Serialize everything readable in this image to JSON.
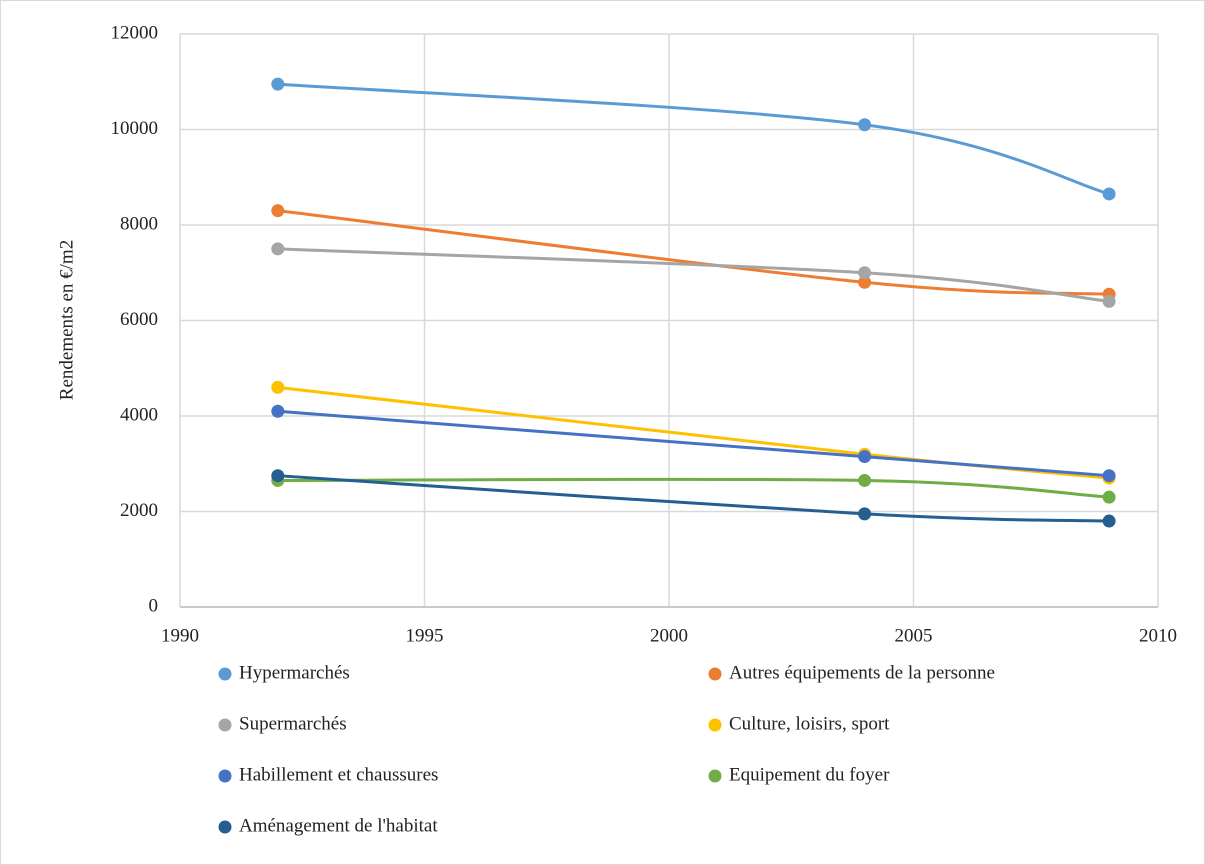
{
  "chart_data": {
    "type": "line",
    "smooth": true,
    "ylabel": "Rendements en €/m2",
    "x": [
      1992,
      2004,
      2009
    ],
    "xlim": [
      1990,
      2010
    ],
    "xticks": [
      1990,
      1995,
      2000,
      2005,
      2010
    ],
    "ylim": [
      0,
      12000
    ],
    "yticks": [
      0,
      2000,
      4000,
      6000,
      8000,
      10000,
      12000
    ],
    "grid": true,
    "legend": "bottom",
    "series": [
      {
        "name": "Hypermarchés",
        "color": "#5b9bd5",
        "values": [
          10950,
          10100,
          8650
        ]
      },
      {
        "name": "Autres équipements de la personne",
        "color": "#ed7d31",
        "values": [
          8300,
          6800,
          6550
        ]
      },
      {
        "name": "Supermarchés",
        "color": "#a5a5a5",
        "values": [
          7500,
          7000,
          6400
        ]
      },
      {
        "name": "Culture, loisirs, sport",
        "color": "#ffc000",
        "values": [
          4600,
          3200,
          2700
        ]
      },
      {
        "name": "Habillement et chaussures",
        "color": "#4472c4",
        "values": [
          4100,
          3150,
          2750
        ]
      },
      {
        "name": "Equipement du foyer",
        "color": "#70ad47",
        "values": [
          2650,
          2650,
          2300
        ]
      },
      {
        "name": "Aménagement de l'habitat",
        "color": "#255e91",
        "values": [
          2750,
          1950,
          1800
        ]
      }
    ]
  }
}
